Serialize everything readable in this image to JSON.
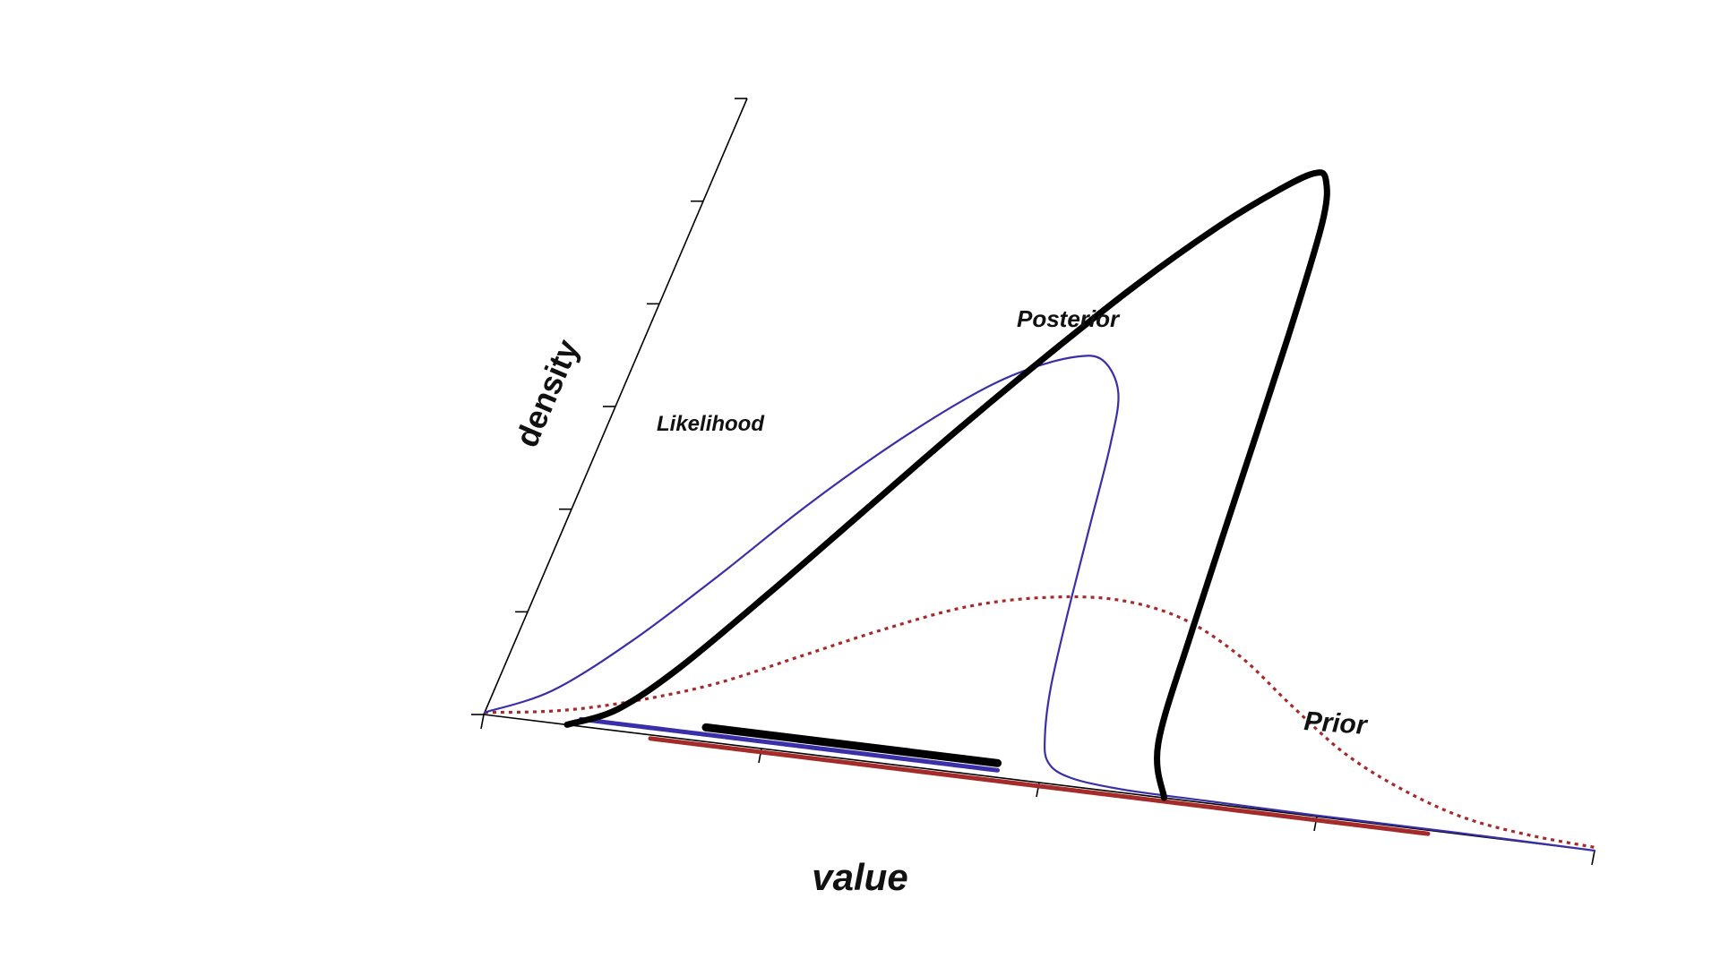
{
  "chart_data": {
    "type": "line",
    "projection": "oblique",
    "title": "",
    "xlabel": "value",
    "ylabel": "density",
    "xlim": [
      0,
      4
    ],
    "ylim": [
      0,
      6
    ],
    "x_ticks": [
      0,
      1,
      2,
      3,
      4
    ],
    "y_ticks": [
      0,
      1,
      2,
      3,
      4,
      5,
      6
    ],
    "tick_labels_shown": false,
    "grid": false,
    "legend": "none",
    "series": [
      {
        "name": "Prior",
        "color": "#a52a2a",
        "style": "dotted",
        "x": [
          0,
          0.25,
          0.5,
          0.75,
          1.0,
          1.25,
          1.5,
          1.75,
          2.0,
          2.25,
          2.5,
          2.75,
          3.0,
          3.25,
          3.5,
          3.75,
          4.0
        ],
        "y": [
          0.02,
          0.12,
          0.3,
          0.55,
          0.9,
          1.25,
          1.55,
          1.72,
          1.78,
          1.68,
          1.4,
          1.0,
          0.62,
          0.35,
          0.16,
          0.07,
          0.03
        ],
        "interval": [
          0.6,
          3.4
        ]
      },
      {
        "name": "Likelihood",
        "color": "#3a2fa8",
        "style": "solid-dashed",
        "x": [
          0,
          0.2,
          0.4,
          0.6,
          0.8,
          1.0,
          1.2,
          1.35,
          1.5,
          1.6,
          1.7,
          1.75,
          1.8,
          1.85,
          1.9,
          1.95,
          2.0,
          2.1,
          2.3,
          2.6,
          3.0,
          3.5,
          4.0
        ],
        "y": [
          0.02,
          0.3,
          0.85,
          1.55,
          2.3,
          2.95,
          3.5,
          3.8,
          3.98,
          3.98,
          3.7,
          3.2,
          2.4,
          1.6,
          0.9,
          0.45,
          0.2,
          0.08,
          0.03,
          0.02,
          0.01,
          0.01,
          0.0
        ],
        "interval": [
          0.35,
          1.85
        ]
      },
      {
        "name": "Posterior",
        "color": "#000000",
        "style": "solid",
        "x": [
          0.3,
          0.45,
          0.6,
          0.8,
          1.0,
          1.2,
          1.4,
          1.6,
          1.8,
          1.95,
          2.05,
          2.1,
          2.15,
          2.2,
          2.25,
          2.3,
          2.35,
          2.45
        ],
        "y": [
          0.0,
          0.2,
          0.65,
          1.45,
          2.3,
          3.15,
          3.95,
          4.7,
          5.35,
          5.75,
          5.95,
          5.9,
          5.5,
          4.4,
          3.0,
          1.6,
          0.5,
          0.0
        ],
        "interval": [
          0.8,
          1.85
        ]
      }
    ],
    "annotations": [
      "Posterior",
      "Likelihood",
      "Prior"
    ]
  }
}
